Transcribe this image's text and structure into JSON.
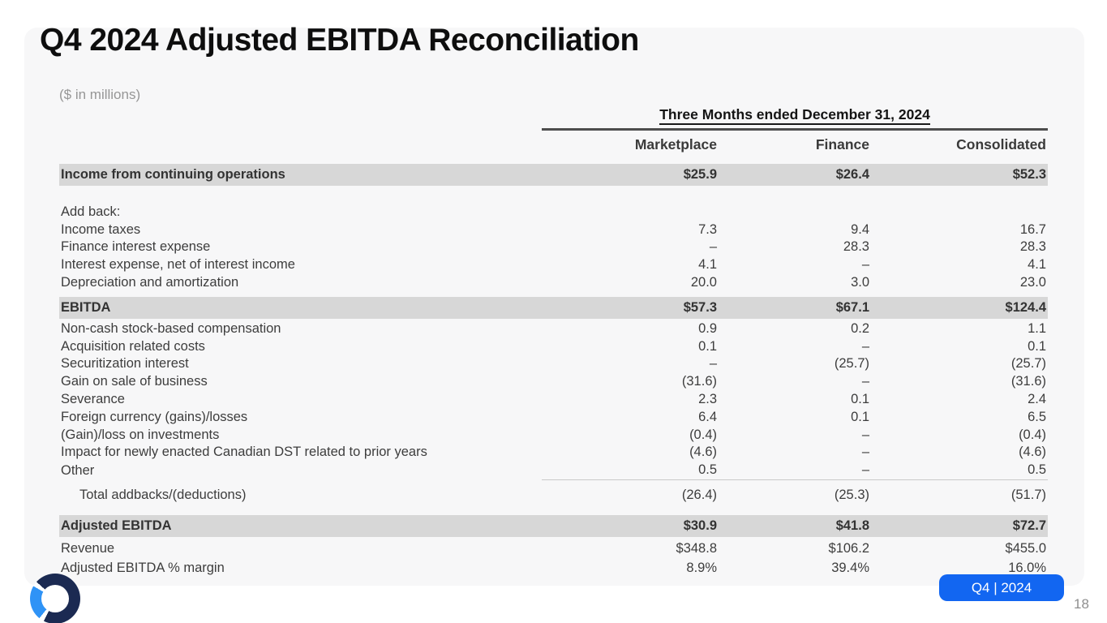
{
  "slide": {
    "title": "Q4 2024 Adjusted EBITDA Reconciliation",
    "units_note": "($ in millions)",
    "badge_label": "Q4 | 2024",
    "page_number": "18",
    "colors": {
      "badge_blue": "#1266f1",
      "logo_navy": "#1b2a52",
      "logo_blue": "#2f93f6",
      "highlight_gray": "#d7d7d7",
      "card_background": "#f7f7f8"
    },
    "logo_icon": "ring-logo-icon"
  },
  "table": {
    "period_header": "Three Months ended December 31, 2024",
    "columns": [
      "Marketplace",
      "Finance",
      "Consolidated"
    ],
    "rows": [
      {
        "label": "Income from continuing operations",
        "values": [
          "$25.9",
          "$26.4",
          "$52.3"
        ],
        "style": "highlight"
      },
      {
        "label": "",
        "values": [
          "",
          "",
          ""
        ],
        "style": "spacer"
      },
      {
        "label": "Add back:",
        "values": [
          "",
          "",
          ""
        ],
        "style": "plain"
      },
      {
        "label": "Income taxes",
        "values": [
          "7.3",
          "9.4",
          "16.7"
        ],
        "style": "plain"
      },
      {
        "label": "Finance interest expense",
        "values": [
          "–",
          "28.3",
          "28.3"
        ],
        "style": "plain"
      },
      {
        "label": "Interest expense, net of interest income",
        "values": [
          "4.1",
          "–",
          "4.1"
        ],
        "style": "plain"
      },
      {
        "label": "Depreciation and amortization",
        "values": [
          "20.0",
          "3.0",
          "23.0"
        ],
        "style": "plain"
      },
      {
        "label": "EBITDA",
        "values": [
          "$57.3",
          "$67.1",
          "$124.4"
        ],
        "style": "highlight"
      },
      {
        "label": "Non-cash stock-based compensation",
        "values": [
          "0.9",
          "0.2",
          "1.1"
        ],
        "style": "plain"
      },
      {
        "label": "Acquisition related costs",
        "values": [
          "0.1",
          "–",
          "0.1"
        ],
        "style": "plain"
      },
      {
        "label": "Securitization interest",
        "values": [
          "–",
          "(25.7)",
          "(25.7)"
        ],
        "style": "plain"
      },
      {
        "label": "Gain on sale of business",
        "values": [
          "(31.6)",
          "–",
          "(31.6)"
        ],
        "style": "plain"
      },
      {
        "label": "Severance",
        "values": [
          "2.3",
          "0.1",
          "2.4"
        ],
        "style": "plain"
      },
      {
        "label": "Foreign currency (gains)/losses",
        "values": [
          "6.4",
          "0.1",
          "6.5"
        ],
        "style": "plain"
      },
      {
        "label": "(Gain)/loss on investments",
        "values": [
          "(0.4)",
          "–",
          "(0.4)"
        ],
        "style": "plain"
      },
      {
        "label": "Impact for newly enacted Canadian DST related to prior years",
        "values": [
          "(4.6)",
          "–",
          "(4.6)"
        ],
        "style": "plain"
      },
      {
        "label": "Other",
        "values": [
          "0.5",
          "–",
          "0.5"
        ],
        "style": "plain rule-after"
      },
      {
        "label": "Total addbacks/(deductions)",
        "values": [
          "(26.4)",
          "(25.3)",
          "(51.7)"
        ],
        "style": "total"
      },
      {
        "label": "Adjusted EBITDA",
        "values": [
          "$30.9",
          "$41.8",
          "$72.7"
        ],
        "style": "highlight"
      },
      {
        "label": "Revenue",
        "values": [
          "$348.8",
          "$106.2",
          "$455.0"
        ],
        "style": "footer-row"
      },
      {
        "label": "Adjusted EBITDA % margin",
        "values": [
          "8.9%",
          "39.4%",
          "16.0%"
        ],
        "style": "footer-row"
      }
    ]
  }
}
